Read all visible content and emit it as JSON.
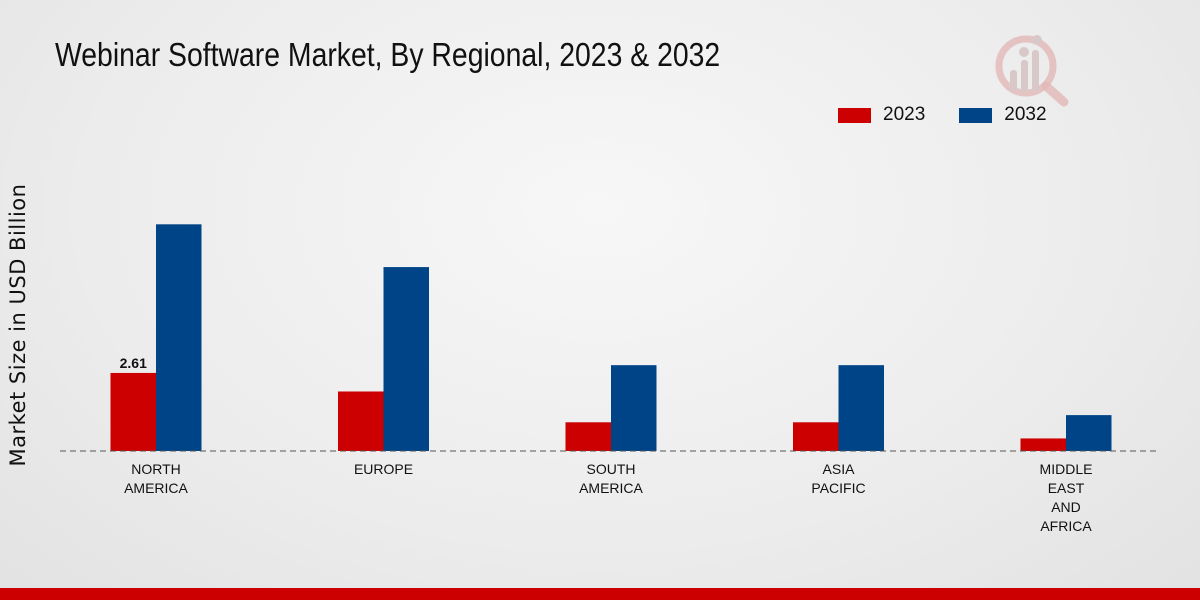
{
  "chart_data": {
    "type": "bar",
    "title": "Webinar Software Market, By Regional, 2023 & 2032",
    "xlabel": "",
    "ylabel": "Market Size in USD Billion",
    "ylim": [
      0,
      11.67
    ],
    "grid": false,
    "legend_position": "top-right",
    "categories": [
      [
        "NORTH",
        "AMERICA"
      ],
      [
        "EUROPE"
      ],
      [
        "SOUTH",
        "AMERICA"
      ],
      [
        "ASIA",
        "PACIFIC"
      ],
      [
        "MIDDLE",
        "EAST",
        "AND",
        "AFRICA"
      ]
    ],
    "series": [
      {
        "name": "2023",
        "color": "#cc0000",
        "values": [
          2.61,
          1.99,
          0.96,
          0.96,
          0.42
        ]
      },
      {
        "name": "2032",
        "color": "#004488",
        "values": [
          7.58,
          6.15,
          2.87,
          2.87,
          1.2
        ]
      }
    ],
    "data_labels": [
      {
        "series": 0,
        "index": 0,
        "text": "2.61"
      }
    ]
  },
  "logo": {
    "icon": "bar-chart-magnifier-icon",
    "color": "#d9a0a0"
  },
  "footer": {
    "color": "#cc0000"
  }
}
